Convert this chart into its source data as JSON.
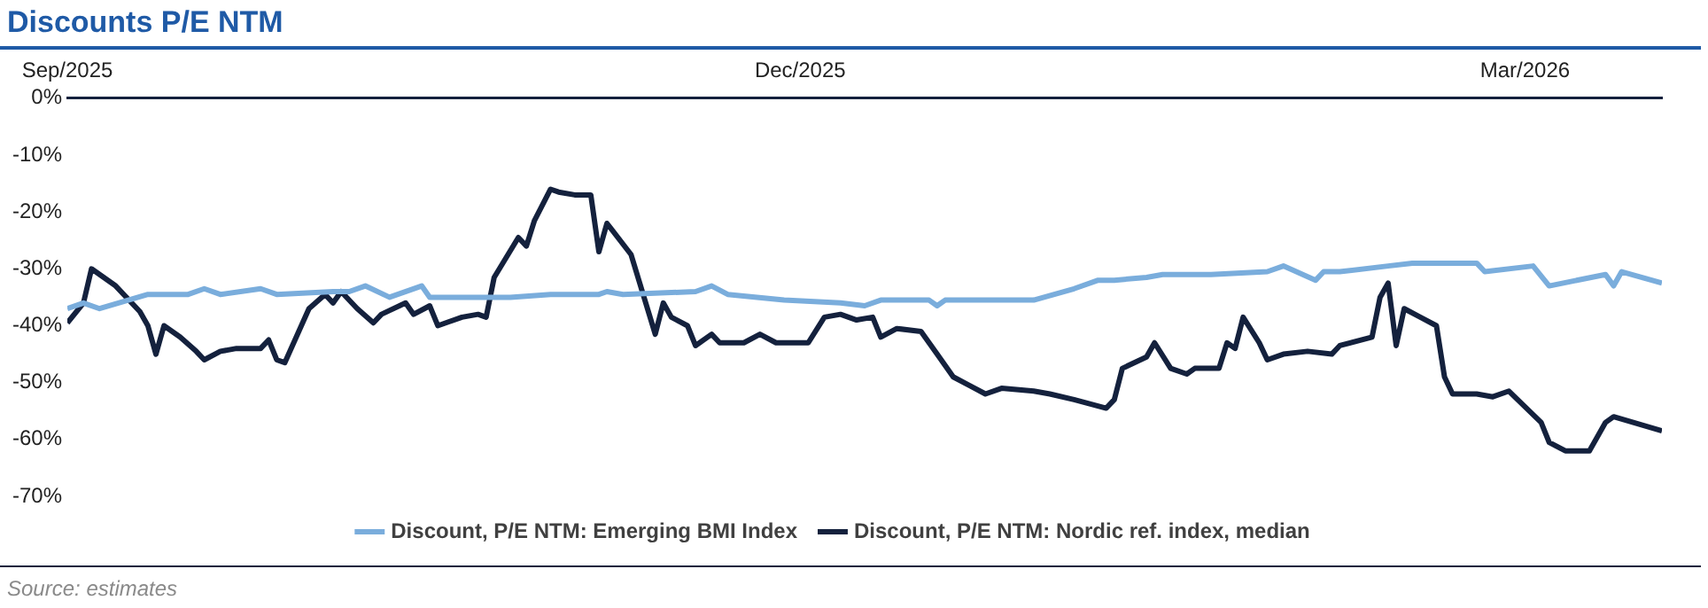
{
  "chart_data": {
    "type": "line",
    "title": "Discounts P/E NTM",
    "annotations": [
      "Source: estimates"
    ],
    "xlim": [
      "2025-09-01",
      "2026-03-18"
    ],
    "xticks": [
      {
        "value": "2025-09-01",
        "label": "Sep/2025"
      },
      {
        "value": "2025-12-01",
        "label": "Dec/2025"
      },
      {
        "value": "2026-03-01",
        "label": "Mar/2026"
      }
    ],
    "ylim": [
      -70,
      0
    ],
    "yticks": [
      {
        "value": -70,
        "label": "-70%"
      },
      {
        "value": -60,
        "label": "-60%"
      },
      {
        "value": -50,
        "label": "-50%"
      },
      {
        "value": -40,
        "label": "-40%"
      },
      {
        "value": -30,
        "label": "-30%"
      },
      {
        "value": -20,
        "label": "-20%"
      },
      {
        "value": -10,
        "label": "-10%"
      },
      {
        "value": 0,
        "label": "0%"
      }
    ],
    "grid": false,
    "legend": "bottom",
    "marker": "none",
    "line_style": "solid",
    "series": [
      {
        "name": "Discount, P/E NTM: Emerging BMI Index",
        "color": "#7aaddc",
        "x": [
          "2025-09-01",
          "2025-09-03",
          "2025-09-05",
          "2025-09-11",
          "2025-09-16",
          "2025-09-18",
          "2025-09-20",
          "2025-09-25",
          "2025-09-27",
          "2025-10-04",
          "2025-10-06",
          "2025-10-08",
          "2025-10-11",
          "2025-10-15",
          "2025-10-16",
          "2025-10-26",
          "2025-10-31",
          "2025-11-06",
          "2025-11-07",
          "2025-11-09",
          "2025-11-18",
          "2025-11-20",
          "2025-11-22",
          "2025-11-29",
          "2025-12-06",
          "2025-12-09",
          "2025-12-11",
          "2025-12-17",
          "2025-12-18",
          "2025-12-19",
          "2025-12-30",
          "2026-01-04",
          "2026-01-07",
          "2026-01-09",
          "2026-01-13",
          "2026-01-15",
          "2026-01-21",
          "2026-01-28",
          "2026-01-30",
          "2026-02-03",
          "2026-02-04",
          "2026-02-06",
          "2026-02-12",
          "2026-02-15",
          "2026-02-23",
          "2026-02-24",
          "2026-03-02",
          "2026-03-04",
          "2026-03-11",
          "2026-03-12",
          "2026-03-13",
          "2026-03-18"
        ],
        "values": [
          -37,
          -36,
          -37,
          -34.5,
          -34.5,
          -33.5,
          -34.5,
          -33.5,
          -34.5,
          -34,
          -34,
          -33,
          -35,
          -33,
          -35,
          -35,
          -34.5,
          -34.5,
          -34,
          -34.5,
          -34,
          -33,
          -34.5,
          -35.5,
          -36,
          -36.5,
          -35.5,
          -35.5,
          -36.5,
          -35.5,
          -35.5,
          -33.5,
          -32,
          -32,
          -31.5,
          -31,
          -31,
          -30.5,
          -29.5,
          -32,
          -30.5,
          -30.5,
          -29.5,
          -29,
          -29,
          -30.5,
          -29.5,
          -33,
          -31,
          -33,
          -30.5,
          -32.5
        ]
      },
      {
        "name": "Discount, P/E NTM: Nordic ref. index, median",
        "color": "#14213d",
        "x": [
          "2025-09-01",
          "2025-09-03",
          "2025-09-04",
          "2025-09-07",
          "2025-09-10",
          "2025-09-11",
          "2025-09-12",
          "2025-09-13",
          "2025-09-15",
          "2025-09-17",
          "2025-09-18",
          "2025-09-20",
          "2025-09-22",
          "2025-09-25",
          "2025-09-26",
          "2025-09-27",
          "2025-09-28",
          "2025-10-01",
          "2025-10-03",
          "2025-10-04",
          "2025-10-05",
          "2025-10-07",
          "2025-10-09",
          "2025-10-10",
          "2025-10-13",
          "2025-10-14",
          "2025-10-16",
          "2025-10-17",
          "2025-10-20",
          "2025-10-22",
          "2025-10-23",
          "2025-10-24",
          "2025-10-27",
          "2025-10-28",
          "2025-10-29",
          "2025-10-31",
          "2025-11-01",
          "2025-11-03",
          "2025-11-05",
          "2025-11-06",
          "2025-11-07",
          "2025-11-10",
          "2025-11-13",
          "2025-11-14",
          "2025-11-15",
          "2025-11-17",
          "2025-11-18",
          "2025-11-20",
          "2025-11-21",
          "2025-11-24",
          "2025-11-26",
          "2025-11-28",
          "2025-12-02",
          "2025-12-04",
          "2025-12-06",
          "2025-12-08",
          "2025-12-10",
          "2025-12-11",
          "2025-12-13",
          "2025-12-16",
          "2025-12-18",
          "2025-12-20",
          "2025-12-22",
          "2025-12-24",
          "2025-12-26",
          "2025-12-30",
          "2026-01-01",
          "2026-01-04",
          "2026-01-08",
          "2026-01-09",
          "2026-01-10",
          "2026-01-13",
          "2026-01-14",
          "2026-01-16",
          "2026-01-18",
          "2026-01-19",
          "2026-01-22",
          "2026-01-23",
          "2026-01-24",
          "2026-01-25",
          "2026-01-27",
          "2026-01-28",
          "2026-01-30",
          "2026-02-02",
          "2026-02-05",
          "2026-02-06",
          "2026-02-10",
          "2026-02-11",
          "2026-02-12",
          "2026-02-13",
          "2026-02-14",
          "2026-02-16",
          "2026-02-18",
          "2026-02-19",
          "2026-02-20",
          "2026-02-23",
          "2026-02-25",
          "2026-02-27",
          "2026-03-03",
          "2026-03-04",
          "2026-03-06",
          "2026-03-09",
          "2026-03-11",
          "2026-03-12",
          "2026-03-18"
        ],
        "values": [
          -39.5,
          -36,
          -30,
          -33,
          -37.5,
          -40,
          -45,
          -40,
          -42,
          -44.5,
          -46,
          -44.5,
          -44,
          -44,
          -42.5,
          -46,
          -46.5,
          -37,
          -34.5,
          -36,
          -34,
          -37,
          -39.5,
          -38,
          -36,
          -38,
          -36.5,
          -40,
          -38.5,
          -38,
          -38.5,
          -31.5,
          -24.5,
          -26,
          -21.5,
          -16,
          -16.5,
          -17,
          -17,
          -27,
          -22,
          -27.5,
          -41.5,
          -36,
          -38.5,
          -40,
          -43.5,
          -41.5,
          -43,
          -43,
          -41.5,
          -43,
          -43,
          -38.5,
          -38,
          -39,
          -38.5,
          -42,
          -40.5,
          -41,
          -45,
          -49,
          -50.5,
          -52,
          -51,
          -51.5,
          -52,
          -53,
          -54.5,
          -53,
          -47.5,
          -45.5,
          -43,
          -47.5,
          -48.5,
          -47.5,
          -47.5,
          -43,
          -44,
          -38.5,
          -43,
          -46,
          -45,
          -44.5,
          -45,
          -43.5,
          -42,
          -35,
          -32.5,
          -43.5,
          -37,
          -38.5,
          -40,
          -49,
          -52,
          -52,
          -52.5,
          -51.5,
          -57,
          -60.5,
          -62,
          -62,
          -57,
          -56,
          -58.5
        ]
      }
    ]
  }
}
